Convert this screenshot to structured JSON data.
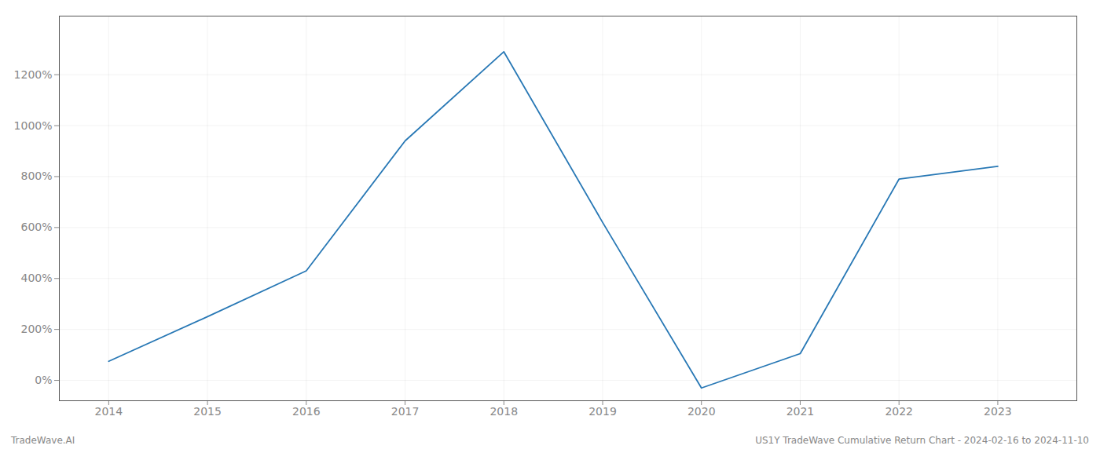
{
  "chart_data": {
    "type": "line",
    "x": [
      2014,
      2015,
      2016,
      2017,
      2018,
      2019,
      2020,
      2021,
      2022,
      2023
    ],
    "values": [
      75,
      250,
      430,
      940,
      1290,
      620,
      -30,
      105,
      790,
      840
    ],
    "color": "#2878b5",
    "xlim": [
      2013.5,
      2023.8
    ],
    "xticks": [
      2014,
      2015,
      2016,
      2017,
      2018,
      2019,
      2020,
      2021,
      2022,
      2023
    ],
    "ylim": [
      -80,
      1430
    ],
    "yticks": [
      {
        "value": 0,
        "label": "0%"
      },
      {
        "value": 200,
        "label": "200%"
      },
      {
        "value": 400,
        "label": "400%"
      },
      {
        "value": 600,
        "label": "600%"
      },
      {
        "value": 800,
        "label": "800%"
      },
      {
        "value": 1000,
        "label": "1000%"
      },
      {
        "value": 1200,
        "label": "1200%"
      }
    ],
    "grid": true,
    "annotations": [
      "TradeWave.AI",
      "US1Y TradeWave Cumulative Return Chart - 2024-02-16 to 2024-11-10"
    ]
  }
}
